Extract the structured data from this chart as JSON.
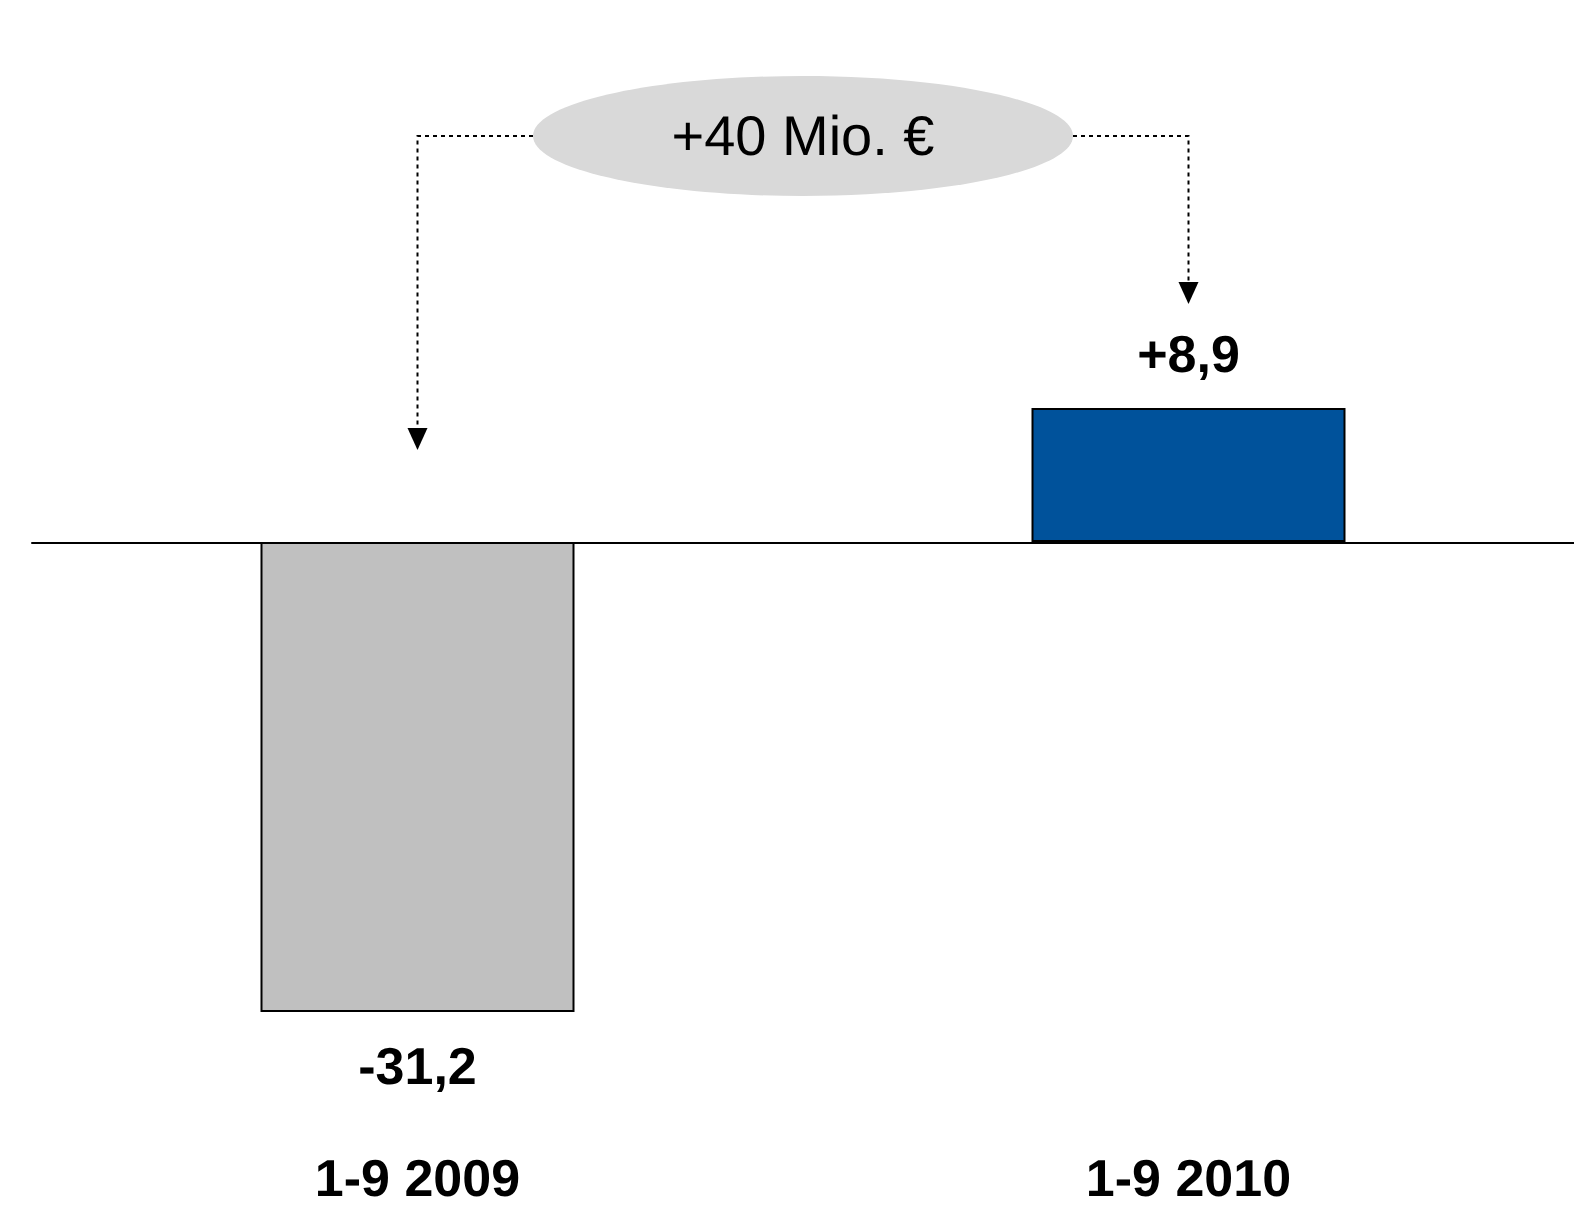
{
  "chart_data": {
    "type": "bar",
    "categories": [
      "1-9 2009",
      "1-9 2010"
    ],
    "values": [
      -31.2,
      8.9
    ],
    "colors": [
      "#c0c0c0",
      "#00529b"
    ],
    "value_labels": [
      "-31,2",
      "+8,9"
    ],
    "annotations": [
      "+40 Mio. €"
    ]
  }
}
